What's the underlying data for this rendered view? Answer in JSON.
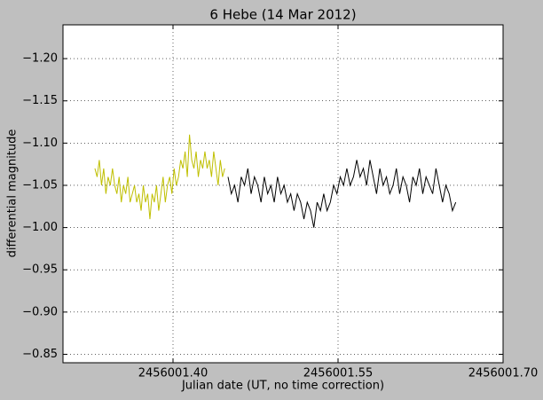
{
  "chart_data": {
    "type": "line",
    "title": "6 Hebe (14 Mar 2012)",
    "xlabel": "Julian date (UT, no time correction)",
    "ylabel": "differential magnitude",
    "xlim": [
      2456001.3,
      2456001.7
    ],
    "xticks": [
      {
        "value": 2456001.4,
        "label": "2456001.40"
      },
      {
        "value": 2456001.55,
        "label": "2456001.55"
      },
      {
        "value": 2456001.7,
        "label": "2456001.70"
      }
    ],
    "ylim": [
      -0.84,
      -1.24
    ],
    "yticks": [
      {
        "value": -1.2,
        "label": "−1.20"
      },
      {
        "value": -1.15,
        "label": "−1.15"
      },
      {
        "value": -1.1,
        "label": "−1.10"
      },
      {
        "value": -1.05,
        "label": "−1.05"
      },
      {
        "value": -1.0,
        "label": "−1.00"
      },
      {
        "value": -0.95,
        "label": "−0.95"
      },
      {
        "value": -0.9,
        "label": "−0.90"
      },
      {
        "value": -0.85,
        "label": "−0.85"
      }
    ],
    "grid": true,
    "series": [
      {
        "color": "#bfbf00",
        "x": [
          2456001.329,
          2456001.331,
          2456001.333,
          2456001.335,
          2456001.337,
          2456001.339,
          2456001.341,
          2456001.343,
          2456001.345,
          2456001.347,
          2456001.349,
          2456001.351,
          2456001.353,
          2456001.355,
          2456001.357,
          2456001.359,
          2456001.361,
          2456001.363,
          2456001.365,
          2456001.367,
          2456001.369,
          2456001.371,
          2456001.373,
          2456001.375,
          2456001.377,
          2456001.379,
          2456001.381,
          2456001.383,
          2456001.385,
          2456001.387,
          2456001.389,
          2456001.391,
          2456001.393,
          2456001.395,
          2456001.397,
          2456001.399,
          2456001.401,
          2456001.403,
          2456001.405,
          2456001.407,
          2456001.409,
          2456001.411,
          2456001.413,
          2456001.415,
          2456001.417,
          2456001.419,
          2456001.421,
          2456001.423,
          2456001.425,
          2456001.427,
          2456001.429,
          2456001.431,
          2456001.433,
          2456001.435,
          2456001.437,
          2456001.439,
          2456001.441,
          2456001.443,
          2456001.445,
          2456001.447
        ],
        "values": [
          -1.07,
          -1.06,
          -1.08,
          -1.05,
          -1.07,
          -1.04,
          -1.06,
          -1.05,
          -1.07,
          -1.05,
          -1.04,
          -1.06,
          -1.03,
          -1.05,
          -1.04,
          -1.06,
          -1.03,
          -1.04,
          -1.05,
          -1.03,
          -1.04,
          -1.02,
          -1.05,
          -1.03,
          -1.04,
          -1.01,
          -1.04,
          -1.03,
          -1.05,
          -1.02,
          -1.04,
          -1.06,
          -1.03,
          -1.05,
          -1.06,
          -1.04,
          -1.07,
          -1.05,
          -1.06,
          -1.08,
          -1.07,
          -1.09,
          -1.06,
          -1.11,
          -1.08,
          -1.07,
          -1.09,
          -1.06,
          -1.08,
          -1.07,
          -1.09,
          -1.07,
          -1.08,
          -1.06,
          -1.09,
          -1.07,
          -1.05,
          -1.08,
          -1.06,
          -1.07
        ]
      },
      {
        "color": "#000000",
        "x": [
          2456001.45,
          2456001.453,
          2456001.456,
          2456001.459,
          2456001.462,
          2456001.465,
          2456001.468,
          2456001.471,
          2456001.474,
          2456001.477,
          2456001.48,
          2456001.483,
          2456001.486,
          2456001.489,
          2456001.492,
          2456001.495,
          2456001.498,
          2456001.501,
          2456001.504,
          2456001.507,
          2456001.51,
          2456001.513,
          2456001.516,
          2456001.519,
          2456001.522,
          2456001.525,
          2456001.528,
          2456001.531,
          2456001.534,
          2456001.537,
          2456001.54,
          2456001.543,
          2456001.546,
          2456001.549,
          2456001.552,
          2456001.555,
          2456001.558,
          2456001.561,
          2456001.564,
          2456001.567,
          2456001.57,
          2456001.573,
          2456001.576,
          2456001.579,
          2456001.582,
          2456001.585,
          2456001.588,
          2456001.591,
          2456001.594,
          2456001.597,
          2456001.6,
          2456001.603,
          2456001.606,
          2456001.609,
          2456001.612,
          2456001.615,
          2456001.618,
          2456001.621,
          2456001.624,
          2456001.627,
          2456001.63,
          2456001.633,
          2456001.636,
          2456001.639,
          2456001.642,
          2456001.645,
          2456001.648,
          2456001.651,
          2456001.654,
          2456001.657
        ],
        "values": [
          -1.06,
          -1.04,
          -1.05,
          -1.03,
          -1.06,
          -1.05,
          -1.07,
          -1.04,
          -1.06,
          -1.05,
          -1.03,
          -1.06,
          -1.04,
          -1.05,
          -1.03,
          -1.06,
          -1.04,
          -1.05,
          -1.03,
          -1.04,
          -1.02,
          -1.04,
          -1.03,
          -1.01,
          -1.03,
          -1.02,
          -1.0,
          -1.03,
          -1.02,
          -1.04,
          -1.02,
          -1.03,
          -1.05,
          -1.04,
          -1.06,
          -1.05,
          -1.07,
          -1.05,
          -1.06,
          -1.08,
          -1.06,
          -1.07,
          -1.05,
          -1.08,
          -1.06,
          -1.04,
          -1.07,
          -1.05,
          -1.06,
          -1.04,
          -1.05,
          -1.07,
          -1.04,
          -1.06,
          -1.05,
          -1.03,
          -1.06,
          -1.05,
          -1.07,
          -1.04,
          -1.06,
          -1.05,
          -1.04,
          -1.07,
          -1.05,
          -1.03,
          -1.05,
          -1.04,
          -1.02,
          -1.03
        ]
      }
    ]
  }
}
